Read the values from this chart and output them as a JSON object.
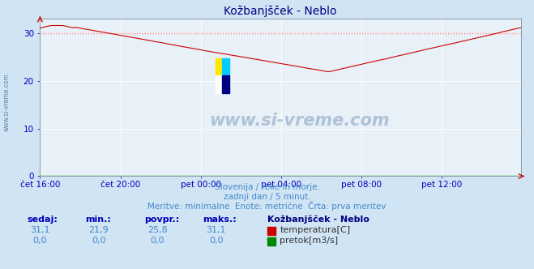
{
  "title": "Kožbanjšček - Neblo",
  "bg_color": "#d0e4f4",
  "plot_bg_color": "#e8f0f8",
  "line_color": "#cc0000",
  "line_color2": "#00aa00",
  "dashed_line_color": "#ff6666",
  "dashed_line_y": 29.9,
  "title_color": "#000080",
  "text_color": "#4488cc",
  "footer_text_color": "#333333",
  "label_color": "#0000bb",
  "watermark_color": "#1a5080",
  "ylim": [
    0,
    33
  ],
  "yticks": [
    0,
    10,
    20,
    30
  ],
  "x_labels": [
    "čet 16:00",
    "čet 20:00",
    "pet 00:00",
    "pet 04:00",
    "pet 08:00",
    "pet 12:00"
  ],
  "subtitle1": "Slovenija / reke in morje.",
  "subtitle2": "zadnji dan / 5 minut.",
  "subtitle3": "Meritve: minimalne  Enote: metrične  Črta: prva meritev",
  "footer_label1": "sedaj:",
  "footer_label2": "min.:",
  "footer_label3": "povpr.:",
  "footer_label4": "maks.:",
  "footer_station": "Kožbanjšček - Neblo",
  "footer_series1": "temperatura[C]",
  "footer_series2": "pretok[m3/s]",
  "footer_val_sedaj1": "31,1",
  "footer_val_min1": "21,9",
  "footer_val_povpr1": "25,8",
  "footer_val_maks1": "31,1",
  "footer_val_sedaj2": "0,0",
  "footer_val_min2": "0,0",
  "footer_val_povpr2": "0,0",
  "footer_val_maks2": "0,0",
  "watermark": "www.si-vreme.com",
  "n_points": 288,
  "logo_colors": [
    "#FFE800",
    "#00CCFF",
    "#FFFFFF",
    "#000080"
  ]
}
